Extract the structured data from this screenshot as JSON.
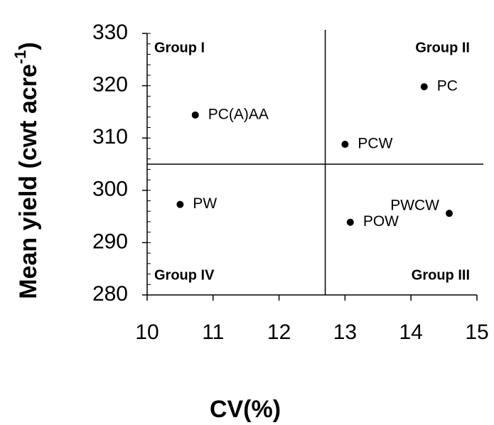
{
  "chart_data": {
    "type": "scatter",
    "xlabel": "CV(%)",
    "ylabel": {
      "text": "Mean yield (cwt acre",
      "superscript": "-1",
      "end": ")"
    },
    "xlim": [
      10,
      15
    ],
    "xticks": [
      10,
      11,
      12,
      13,
      14,
      15
    ],
    "ylim": [
      280,
      330
    ],
    "yticks": [
      280,
      290,
      300,
      310,
      320,
      330
    ],
    "y_minor_tick_step": 2,
    "color": "#000000",
    "points": [
      {
        "label": "PC(A)AA",
        "x": 10.73,
        "y": 314.4,
        "label_side": "right"
      },
      {
        "label": "PC",
        "x": 14.2,
        "y": 319.8,
        "label_side": "right"
      },
      {
        "label": "PCW",
        "x": 13.0,
        "y": 308.8,
        "label_side": "right"
      },
      {
        "label": "PW",
        "x": 10.5,
        "y": 297.3,
        "label_side": "right"
      },
      {
        "label": "PWCW",
        "x": 14.58,
        "y": 295.6,
        "label_side": "left"
      },
      {
        "label": "POW",
        "x": 13.08,
        "y": 293.9,
        "label_side": "right"
      }
    ],
    "reference_lines": {
      "x": 12.7,
      "y": 305
    },
    "annotations": [
      {
        "text": "Group I",
        "corner": "top-left"
      },
      {
        "text": "Group II",
        "corner": "top-right"
      },
      {
        "text": "Group III",
        "corner": "bottom-right"
      },
      {
        "text": "Group IV",
        "corner": "bottom-left"
      }
    ]
  }
}
